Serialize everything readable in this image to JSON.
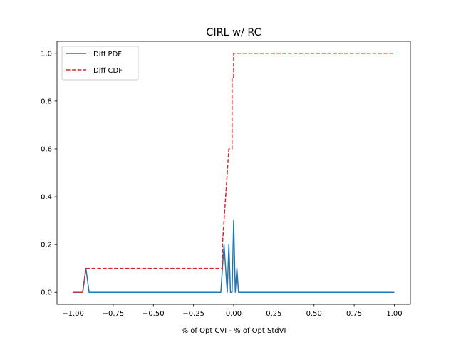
{
  "chart_data": {
    "type": "line",
    "title": "CIRL w/ RC",
    "xlabel": "% of Opt CVI - % of Opt StdVI",
    "ylabel": "",
    "xlim": [
      -1.1,
      1.1
    ],
    "ylim": [
      -0.05,
      1.05
    ],
    "xticks": [
      -1.0,
      -0.75,
      -0.5,
      -0.25,
      0.0,
      0.25,
      0.5,
      0.75,
      1.0
    ],
    "xtick_labels": [
      "−1.00",
      "−0.75",
      "−0.50",
      "−0.25",
      "0.00",
      "0.25",
      "0.50",
      "0.75",
      "1.00"
    ],
    "yticks": [
      0.0,
      0.2,
      0.4,
      0.6,
      0.8,
      1.0
    ],
    "ytick_labels": [
      "0.0",
      "0.2",
      "0.4",
      "0.6",
      "0.8",
      "1.0"
    ],
    "grid": false,
    "legend_position": "top-left",
    "series": [
      {
        "name": "Diff PDF",
        "color": "#1f77b4",
        "dash": "solid",
        "x": [
          -1.0,
          -0.94,
          -0.92,
          -0.9,
          -0.08,
          -0.06,
          -0.04,
          -0.03,
          -0.02,
          -0.01,
          0.0,
          0.01,
          0.02,
          0.03,
          1.0
        ],
        "y": [
          0.0,
          0.0,
          0.1,
          0.0,
          0.0,
          0.2,
          0.0,
          0.2,
          0.0,
          0.0,
          0.3,
          0.0,
          0.1,
          0.0,
          0.0
        ]
      },
      {
        "name": "Diff CDF",
        "color": "#d62728",
        "dash": "dashed",
        "x": [
          -1.0,
          -0.94,
          -0.92,
          -0.91,
          -0.07,
          -0.07,
          -0.06,
          -0.05,
          -0.05,
          -0.03,
          -0.03,
          -0.01,
          -0.01,
          0.0,
          0.0,
          0.01,
          0.01,
          1.0
        ],
        "y": [
          0.0,
          0.0,
          0.1,
          0.1,
          0.1,
          0.2,
          0.3,
          0.4,
          0.4,
          0.6,
          0.6,
          0.6,
          0.9,
          0.9,
          1.0,
          1.0,
          1.0,
          1.0
        ]
      }
    ]
  }
}
